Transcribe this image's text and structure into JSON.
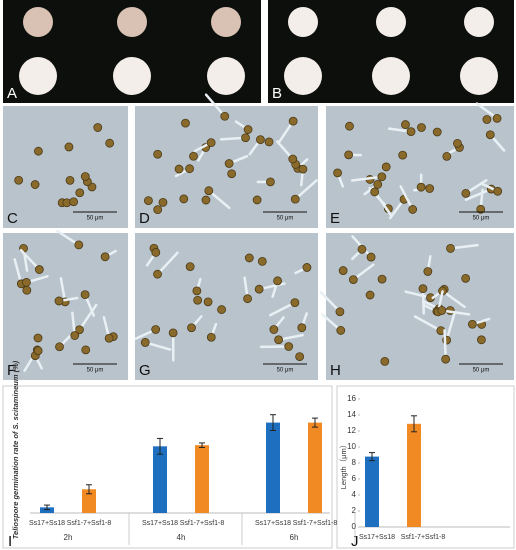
{
  "panels": [
    {
      "label": "A"
    },
    {
      "label": "B"
    },
    {
      "label": "C",
      "scale_bar": "50 μm"
    },
    {
      "label": "D",
      "scale_bar": "50 μm"
    },
    {
      "label": "E",
      "scale_bar": "50 μm"
    },
    {
      "label": "F",
      "scale_bar": "50 μm"
    },
    {
      "label": "G",
      "scale_bar": "50 μm"
    },
    {
      "label": "H",
      "scale_bar": "50 μm"
    },
    {
      "label": "I"
    },
    {
      "label": "J"
    }
  ],
  "chart_data": [
    {
      "type": "grouped-bar",
      "y_label": "Teliospore germination rate of S. scitamineum (%)",
      "categories": [
        "2h",
        "4h",
        "6h"
      ],
      "series": [
        {
          "name": "Ss17+Ss18",
          "color": "#1f6fc0",
          "values": [
            5,
            59,
            80
          ],
          "errors": [
            2,
            7,
            7
          ]
        },
        {
          "name": "Ssf1-7+Ssf1-8",
          "color": "#f28a24",
          "values": [
            21,
            60,
            80
          ],
          "errors": [
            4,
            2,
            4
          ]
        }
      ],
      "ylim": [
        0,
        100
      ]
    },
    {
      "type": "bar",
      "y_label": "Length（μm）",
      "categories": [
        "Ss17+Ss18",
        "Ssf1-7+Ssf1-8"
      ],
      "values": [
        8.8,
        12.9
      ],
      "errors": [
        0.5,
        1.0
      ],
      "colors": [
        "#1f6fc0",
        "#f28a24"
      ],
      "ylim": [
        0,
        16
      ],
      "yticks": [
        0,
        2,
        4,
        6,
        8,
        10,
        12,
        14,
        16
      ]
    }
  ]
}
